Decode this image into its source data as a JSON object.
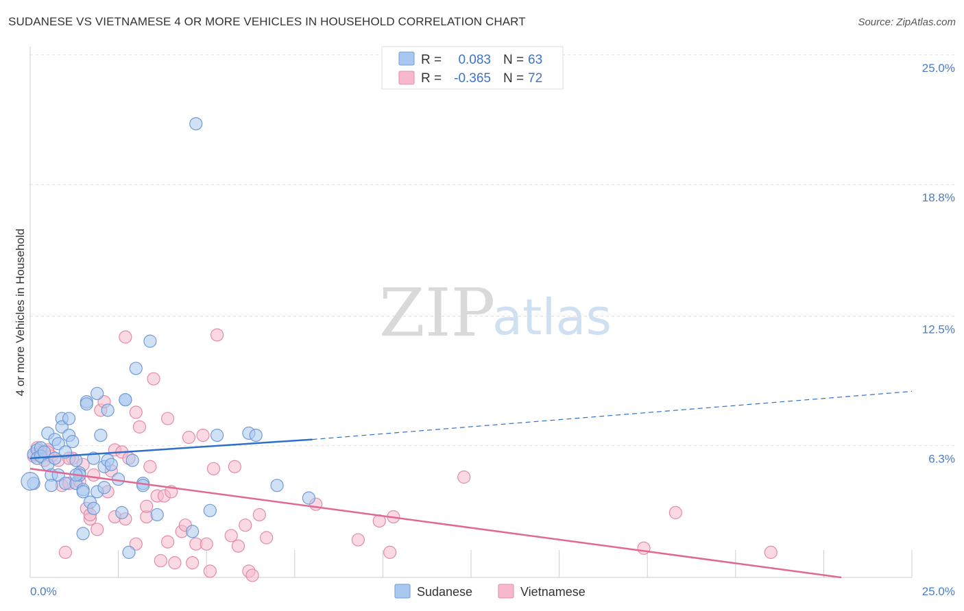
{
  "title": "SUDANESE VS VIETNAMESE 4 OR MORE VEHICLES IN HOUSEHOLD CORRELATION CHART",
  "source": "Source: ZipAtlas.com",
  "watermark": {
    "zip": "ZIP",
    "atlas": "atlas"
  },
  "colors": {
    "sudanese_fill": "#a9c8ef",
    "sudanese_stroke": "#6f9ad6",
    "sudanese_line": "#2e6fca",
    "vietnamese_fill": "#f6b9cc",
    "vietnamese_stroke": "#e38aa8",
    "vietnamese_line": "#e06894",
    "tick": "#4a7cc7",
    "grid": "#dddddd"
  },
  "legend": {
    "rows": [
      {
        "r_label": "R =",
        "r_value": "0.083",
        "n_label": "N =",
        "n_value": "63"
      },
      {
        "r_label": "R =",
        "r_value": "-0.365",
        "n_label": "N =",
        "n_value": "72"
      }
    ]
  },
  "chart_data": {
    "type": "scatter",
    "title": "SUDANESE VS VIETNAMESE 4 OR MORE VEHICLES IN HOUSEHOLD CORRELATION CHART",
    "xlabel": "",
    "ylabel": "4 or more Vehicles in Household",
    "xlim": [
      0,
      25
    ],
    "ylim": [
      0,
      25
    ],
    "x_tick_labels": [
      "0.0%",
      "25.0%"
    ],
    "y_ticks": [
      6.3,
      12.5,
      18.8,
      25.0
    ],
    "y_tick_labels": [
      "6.3%",
      "12.5%",
      "18.8%",
      "25.0%"
    ],
    "grid": true,
    "legend_position": "top-center",
    "series": [
      {
        "name": "Sudanese",
        "r": 0.083,
        "n": 63,
        "trend": {
          "x0": 0,
          "y0": 5.7,
          "x1": 8.0,
          "y1": 6.6,
          "dashed_to_x": 25,
          "dashed_to_y": 8.9
        },
        "points": [
          [
            0.1,
            4.5
          ],
          [
            0.1,
            5.9
          ],
          [
            0.2,
            6.1
          ],
          [
            0.2,
            5.7
          ],
          [
            0.3,
            6.2
          ],
          [
            0.3,
            5.8
          ],
          [
            0.4,
            6.0
          ],
          [
            0.5,
            6.9
          ],
          [
            0.5,
            5.4
          ],
          [
            0.6,
            4.9
          ],
          [
            0.6,
            4.4
          ],
          [
            0.7,
            6.6
          ],
          [
            0.7,
            5.7
          ],
          [
            0.8,
            4.9
          ],
          [
            0.8,
            6.4
          ],
          [
            0.9,
            7.6
          ],
          [
            0.9,
            7.2
          ],
          [
            1.0,
            4.5
          ],
          [
            1.0,
            6.0
          ],
          [
            1.1,
            7.6
          ],
          [
            1.1,
            6.8
          ],
          [
            1.2,
            6.5
          ],
          [
            1.3,
            5.6
          ],
          [
            1.3,
            4.5
          ],
          [
            1.4,
            5.0
          ],
          [
            1.4,
            4.9
          ],
          [
            1.5,
            4.2
          ],
          [
            1.5,
            4.1
          ],
          [
            1.5,
            2.1
          ],
          [
            1.6,
            8.4
          ],
          [
            1.6,
            8.3
          ],
          [
            1.7,
            3.6
          ],
          [
            1.8,
            3.3
          ],
          [
            1.8,
            5.7
          ],
          [
            1.9,
            4.1
          ],
          [
            1.9,
            8.8
          ],
          [
            2.0,
            6.8
          ],
          [
            2.1,
            4.3
          ],
          [
            2.1,
            5.3
          ],
          [
            2.2,
            5.6
          ],
          [
            2.2,
            8.0
          ],
          [
            2.3,
            5.4
          ],
          [
            2.5,
            4.7
          ],
          [
            2.6,
            3.1
          ],
          [
            2.7,
            8.5
          ],
          [
            2.7,
            8.5
          ],
          [
            2.8,
            1.2
          ],
          [
            2.9,
            5.6
          ],
          [
            3.0,
            10.0
          ],
          [
            3.2,
            4.5
          ],
          [
            3.2,
            4.4
          ],
          [
            3.4,
            11.3
          ],
          [
            3.6,
            3.0
          ],
          [
            4.6,
            2.2
          ],
          [
            4.7,
            21.7
          ],
          [
            5.1,
            3.2
          ],
          [
            5.3,
            6.8
          ],
          [
            6.2,
            6.9
          ],
          [
            6.4,
            6.8
          ],
          [
            7.0,
            4.4
          ],
          [
            7.9,
            3.8
          ],
          [
            0.0,
            4.6
          ],
          [
            1.3,
            4.9
          ]
        ]
      },
      {
        "name": "Vietnamese",
        "r": -0.365,
        "n": 72,
        "trend": {
          "x0": 0,
          "y0": 5.2,
          "x1": 23,
          "y1": 0.0
        },
        "points": [
          [
            0.1,
            5.8
          ],
          [
            0.2,
            6.2
          ],
          [
            0.3,
            6.0
          ],
          [
            0.4,
            5.6
          ],
          [
            0.5,
            6.1
          ],
          [
            0.6,
            5.8
          ],
          [
            0.8,
            5.6
          ],
          [
            0.9,
            4.4
          ],
          [
            1.0,
            1.2
          ],
          [
            1.1,
            4.5
          ],
          [
            1.2,
            5.7
          ],
          [
            1.3,
            4.5
          ],
          [
            1.4,
            4.6
          ],
          [
            1.5,
            5.4
          ],
          [
            1.6,
            3.3
          ],
          [
            1.7,
            2.8
          ],
          [
            1.7,
            3.0
          ],
          [
            1.8,
            4.9
          ],
          [
            1.9,
            2.3
          ],
          [
            2.0,
            8.0
          ],
          [
            2.1,
            8.4
          ],
          [
            2.2,
            4.1
          ],
          [
            2.3,
            5.1
          ],
          [
            2.4,
            6.1
          ],
          [
            2.4,
            2.9
          ],
          [
            2.6,
            6.0
          ],
          [
            2.7,
            2.8
          ],
          [
            2.7,
            11.5
          ],
          [
            2.8,
            5.7
          ],
          [
            3.0,
            1.6
          ],
          [
            3.0,
            7.9
          ],
          [
            3.1,
            7.2
          ],
          [
            3.3,
            2.9
          ],
          [
            3.3,
            3.4
          ],
          [
            3.4,
            5.3
          ],
          [
            3.5,
            9.5
          ],
          [
            3.6,
            3.9
          ],
          [
            3.7,
            0.8
          ],
          [
            3.8,
            3.9
          ],
          [
            3.9,
            7.6
          ],
          [
            3.9,
            1.7
          ],
          [
            4.0,
            4.1
          ],
          [
            4.1,
            0.7
          ],
          [
            4.3,
            2.2
          ],
          [
            4.4,
            2.5
          ],
          [
            4.5,
            6.7
          ],
          [
            4.6,
            0.7
          ],
          [
            4.7,
            1.6
          ],
          [
            4.9,
            6.8
          ],
          [
            5.0,
            1.6
          ],
          [
            5.1,
            0.3
          ],
          [
            5.2,
            5.2
          ],
          [
            5.3,
            11.6
          ],
          [
            5.7,
            2.0
          ],
          [
            5.8,
            5.3
          ],
          [
            5.9,
            1.5
          ],
          [
            6.1,
            2.5
          ],
          [
            6.2,
            0.3
          ],
          [
            6.3,
            0.1
          ],
          [
            6.5,
            3.0
          ],
          [
            6.7,
            1.9
          ],
          [
            8.1,
            3.5
          ],
          [
            9.3,
            1.8
          ],
          [
            9.9,
            2.7
          ],
          [
            10.2,
            1.2
          ],
          [
            10.3,
            2.9
          ],
          [
            12.3,
            4.8
          ],
          [
            17.4,
            1.4
          ],
          [
            18.3,
            3.1
          ],
          [
            21.0,
            1.2
          ],
          [
            0.5,
            6.0
          ],
          [
            1.1,
            5.7
          ]
        ]
      }
    ]
  }
}
